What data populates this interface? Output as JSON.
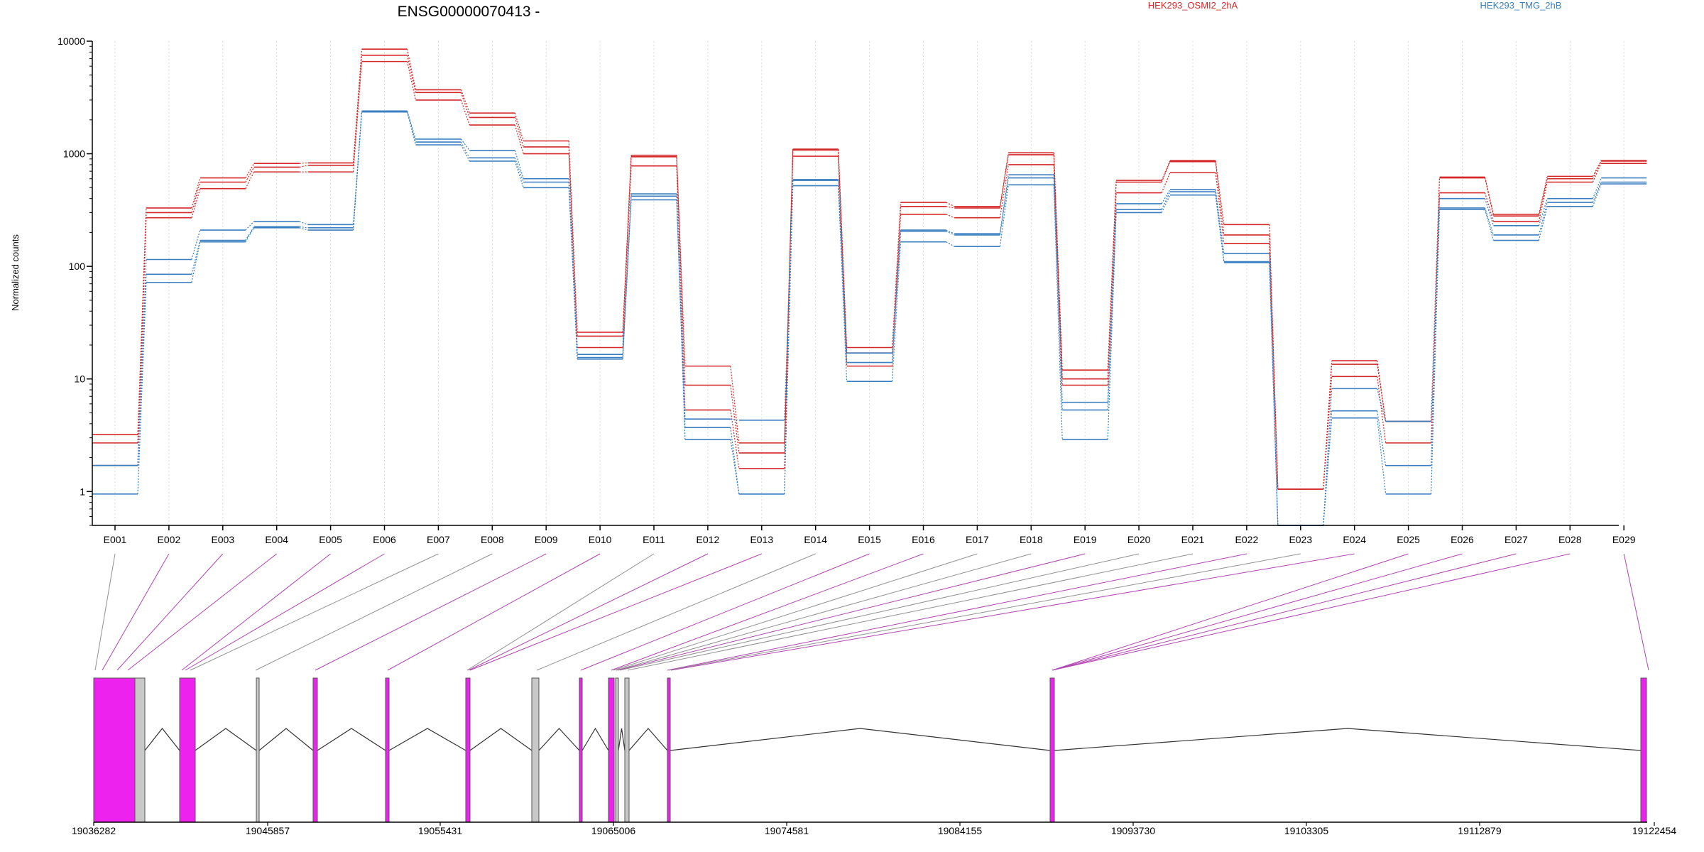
{
  "chart_data": {
    "type": "line",
    "title": "ENSG00000070413 -",
    "ylabel": "Normalized counts",
    "yscale": "log",
    "ylim": [
      0.5,
      10000
    ],
    "yticks": [
      1,
      10,
      100,
      1000,
      10000
    ],
    "ytick_labels": [
      "1",
      "10",
      "100",
      "1000",
      "10000"
    ],
    "grid": "vertical",
    "categories": [
      "E001",
      "E002",
      "E003",
      "E004",
      "E005",
      "E006",
      "E007",
      "E008",
      "E009",
      "E010",
      "E011",
      "E012",
      "E013",
      "E014",
      "E015",
      "E016",
      "E017",
      "E018",
      "E019",
      "E020",
      "E021",
      "E022",
      "E023",
      "E024",
      "E025",
      "E026",
      "E027",
      "E028",
      "E029"
    ],
    "legend": [
      {
        "label": "HEK293_OSMI2_2hA",
        "color": "#d62728"
      },
      {
        "label": "HEK293_TMG_2hB",
        "color": "#3a7fc1"
      }
    ],
    "series": [
      {
        "group": "red",
        "color": "#d62728",
        "values": [
          3.2,
          330,
          610,
          820,
          830,
          8500,
          3700,
          2300,
          1300,
          26,
          970,
          13,
          2.7,
          1100,
          19,
          370,
          340,
          1020,
          12,
          580,
          870,
          235,
          1.05,
          14.5,
          4.2,
          620,
          290,
          630,
          870
        ]
      },
      {
        "group": "red",
        "color": "#d62728",
        "values": [
          2.7,
          300,
          560,
          760,
          790,
          7500,
          3500,
          2100,
          1150,
          24,
          940,
          8.8,
          2.2,
          1080,
          17,
          340,
          330,
          980,
          10,
          560,
          850,
          190,
          1.05,
          13.5,
          4.2,
          610,
          280,
          600,
          860
        ]
      },
      {
        "group": "red",
        "color": "#d62728",
        "values": [
          1.7,
          270,
          490,
          690,
          690,
          6600,
          3000,
          1800,
          1000,
          19,
          780,
          5.3,
          1.6,
          950,
          13,
          290,
          270,
          800,
          8.8,
          450,
          680,
          160,
          1.05,
          10.5,
          2.7,
          450,
          250,
          560,
          820
        ]
      },
      {
        "group": "blue",
        "color": "#3a7fc1",
        "values": [
          1.7,
          115,
          210,
          250,
          235,
          2400,
          1350,
          1070,
          600,
          16.5,
          440,
          4.4,
          4.3,
          590,
          17,
          210,
          195,
          650,
          6.2,
          360,
          480,
          130,
          0.5,
          8.2,
          4.2,
          400,
          230,
          400,
          610
        ]
      },
      {
        "group": "blue",
        "color": "#3a7fc1",
        "values": [
          1.7,
          85,
          170,
          225,
          220,
          2350,
          1270,
          920,
          560,
          15.5,
          420,
          3.7,
          0.95,
          580,
          14,
          205,
          190,
          610,
          5.3,
          320,
          460,
          110,
          0.5,
          5.2,
          1.7,
          330,
          190,
          370,
          560
        ]
      },
      {
        "group": "blue",
        "color": "#3a7fc1",
        "values": [
          0.95,
          72,
          165,
          220,
          210,
          2350,
          1200,
          860,
          500,
          15,
          390,
          2.9,
          0.95,
          520,
          9.5,
          165,
          150,
          530,
          2.9,
          300,
          430,
          108,
          0.5,
          4.5,
          0.95,
          320,
          170,
          340,
          540
        ]
      }
    ],
    "genome_axis_labels": [
      "19036282",
      "19045857",
      "19055431",
      "19065006",
      "19074581",
      "19084155",
      "19093730",
      "19103305",
      "19112879",
      "19122454"
    ]
  }
}
